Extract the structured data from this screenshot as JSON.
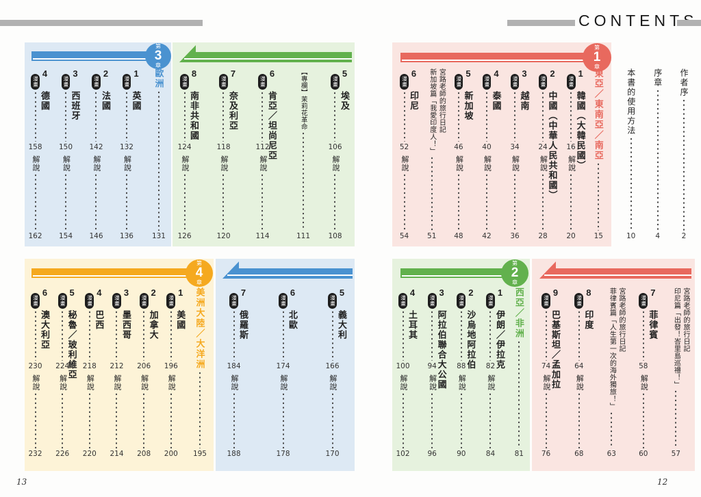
{
  "header": {
    "title": "CONTENTS"
  },
  "footer": {
    "left_page_number": "13",
    "right_page_number": "12"
  },
  "labels": {
    "manga": "漫畫",
    "commentary": "解說"
  },
  "palette": {
    "red": "#e8695e",
    "red_bg": "#fae5e1",
    "blue": "#4a92d0",
    "blue_bg": "#dde9f4",
    "green": "#62b14d",
    "green_bg": "#e6f2de",
    "orange": "#f5a91f",
    "orange_bg": "#fdf3d7",
    "ink": "#222222",
    "rule_gray": "#b1b1b1"
  },
  "sections": {
    "front_matter": {
      "entries": [
        {
          "type": "line",
          "text": "作者序",
          "page": "2"
        },
        {
          "type": "line",
          "text": "序章",
          "page": "4"
        },
        {
          "type": "line",
          "text": "本書的使用方法",
          "page": "10"
        }
      ]
    },
    "east_asia": {
      "badge": {
        "pre": "第",
        "num": "1",
        "post": "章"
      },
      "accent": "red",
      "title": {
        "text": "東亞／東南亞／南亞",
        "page": "15"
      },
      "entries": [
        {
          "type": "country",
          "name": "1 韓國（大韓民國）",
          "manga": "16",
          "commentary": "20"
        },
        {
          "type": "country",
          "name": "2 中國（中華人民共和國）",
          "manga": "24",
          "commentary": "28"
        },
        {
          "type": "country",
          "name": "3 越南",
          "manga": "34",
          "commentary": "36"
        },
        {
          "type": "country",
          "name": "4 泰國",
          "manga": "40",
          "commentary": "42"
        },
        {
          "type": "country",
          "name": "5 新加坡",
          "manga": "46",
          "commentary": "48"
        },
        {
          "type": "diary",
          "line1": "宮路老師的旅行日記",
          "line2": "新加坡篇「我愛印度人！」",
          "page": "51"
        },
        {
          "type": "country",
          "name": "6 印尼",
          "manga": "52",
          "commentary": "54"
        }
      ]
    },
    "south_asia": {
      "accent": "red",
      "entries": [
        {
          "type": "diary",
          "line1": "宮路老師的旅行日記",
          "line2": "印尼篇「出發！峇里島巡禮！」",
          "page": "57"
        },
        {
          "type": "country",
          "name": "7 菲律賓",
          "manga": "58",
          "commentary": "60"
        },
        {
          "type": "diary",
          "line1": "宮路老師的旅行日記",
          "line2": "菲律賓篇「人生第一次的海外獨旅！」",
          "page": "63"
        },
        {
          "type": "country",
          "name": "8 印度",
          "manga": "64",
          "commentary": "68"
        },
        {
          "type": "country",
          "name": "9 巴基斯坦／孟加拉",
          "manga": "74",
          "commentary": "76"
        }
      ]
    },
    "west_asia": {
      "badge": {
        "pre": "第",
        "num": "2",
        "post": "章"
      },
      "accent": "green",
      "title": {
        "text": "西亞／非洲",
        "page": "81"
      },
      "entries": [
        {
          "type": "country",
          "name": "1 伊朗／伊拉克",
          "manga": "82",
          "commentary": "84"
        },
        {
          "type": "country",
          "name": "2 沙烏地阿拉伯",
          "manga": "88",
          "commentary": "90"
        },
        {
          "type": "country",
          "name": "3 阿拉伯聯合大公國",
          "manga": "94",
          "commentary": "96"
        },
        {
          "type": "country",
          "name": "4 土耳其",
          "manga": "100",
          "commentary": "102"
        }
      ]
    },
    "africa": {
      "accent": "green",
      "entries": [
        {
          "type": "country",
          "name": "5 埃及",
          "manga": "106",
          "commentary": "108"
        },
        {
          "type": "note",
          "text": "【專欄】茉莉花革命",
          "page": "111"
        },
        {
          "type": "country",
          "name": "6 肯亞／坦尚尼亞",
          "manga": "112",
          "commentary": "114"
        },
        {
          "type": "country",
          "name": "7 奈及利亞",
          "manga": "118",
          "commentary": "120"
        },
        {
          "type": "country",
          "name": "8 南非共和國",
          "manga": "124",
          "commentary": "126"
        }
      ]
    },
    "europe": {
      "badge": {
        "pre": "第",
        "num": "3",
        "post": "章"
      },
      "accent": "blue",
      "title": {
        "text": "歐洲",
        "page": "131"
      },
      "entries": [
        {
          "type": "country",
          "name": "1 英國",
          "manga": "132",
          "commentary": "136"
        },
        {
          "type": "country",
          "name": "2 法國",
          "manga": "142",
          "commentary": "146"
        },
        {
          "type": "country",
          "name": "3 西班牙",
          "manga": "150",
          "commentary": "154"
        },
        {
          "type": "country",
          "name": "4 德國",
          "manga": "158",
          "commentary": "162"
        }
      ]
    },
    "europe_cont": {
      "accent": "blue",
      "entries": [
        {
          "type": "country",
          "name": "5 義大利",
          "manga": "166",
          "commentary": "170"
        },
        {
          "type": "country",
          "name": "6 北歐",
          "manga": "174",
          "commentary": "178"
        },
        {
          "type": "country",
          "name": "7 俄羅斯",
          "manga": "184",
          "commentary": "188"
        }
      ]
    },
    "americas": {
      "badge": {
        "pre": "第",
        "num": "4",
        "post": "章"
      },
      "accent": "orange",
      "title": {
        "text": "美洲大陸／大洋洲",
        "page": "195"
      },
      "entries": [
        {
          "type": "country",
          "name": "1 美國",
          "manga": "196",
          "commentary": "200"
        },
        {
          "type": "country",
          "name": "2 加拿大",
          "manga": "206",
          "commentary": "208"
        },
        {
          "type": "country",
          "name": "3 墨西哥",
          "manga": "212",
          "commentary": "214"
        },
        {
          "type": "country",
          "name": "4 巴西",
          "manga": "218",
          "commentary": "220"
        },
        {
          "type": "country",
          "name": "5 秘魯／玻利維亞",
          "manga": "224",
          "commentary": "226"
        },
        {
          "type": "country",
          "name": "6 澳大利亞",
          "manga": "230",
          "commentary": "232"
        }
      ]
    }
  }
}
